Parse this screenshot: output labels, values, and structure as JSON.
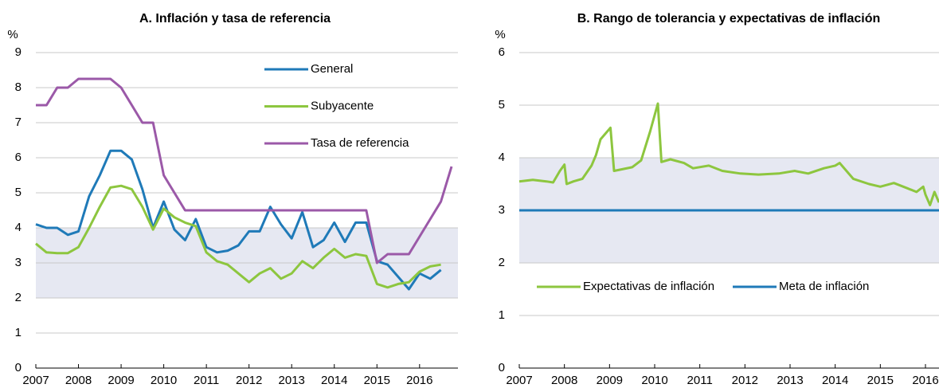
{
  "chart_data": [
    {
      "type": "line",
      "title": "A. Inflación y tasa de referencia",
      "y_unit": "%",
      "ylim": [
        0,
        9
      ],
      "yticks": [
        0,
        1,
        2,
        3,
        4,
        5,
        6,
        7,
        8,
        9
      ],
      "xlim": [
        2007,
        2016.9
      ],
      "xticks": [
        2007,
        2008,
        2009,
        2010,
        2011,
        2012,
        2013,
        2014,
        2015,
        2016
      ],
      "shaded_range": [
        2,
        4
      ],
      "grid": true,
      "legend": "upper right",
      "x": [
        2007,
        2007.25,
        2007.5,
        2007.75,
        2008,
        2008.25,
        2008.5,
        2008.75,
        2009,
        2009.25,
        2009.5,
        2009.75,
        2010,
        2010.25,
        2010.5,
        2010.75,
        2011,
        2011.25,
        2011.5,
        2011.75,
        2012,
        2012.25,
        2012.5,
        2012.75,
        2013,
        2013.25,
        2013.5,
        2013.75,
        2014,
        2014.25,
        2014.5,
        2014.75,
        2015,
        2015.25,
        2015.5,
        2015.75,
        2016,
        2016.25,
        2016.5,
        2016.75
      ],
      "series": [
        {
          "name": "General",
          "color": "#1f7ab8",
          "values": [
            4.1,
            4.0,
            4.0,
            3.8,
            3.9,
            4.9,
            5.5,
            6.2,
            6.2,
            5.95,
            5.1,
            4.0,
            4.75,
            3.95,
            3.65,
            4.25,
            3.45,
            3.3,
            3.35,
            3.5,
            3.9,
            3.9,
            4.6,
            4.1,
            3.7,
            4.45,
            3.45,
            3.65,
            4.15,
            3.6,
            4.15,
            4.15,
            3.05,
            2.95,
            2.6,
            2.25,
            2.7,
            2.55,
            2.8,
            null
          ]
        },
        {
          "name": "Subyacente",
          "color": "#8dc63f",
          "values": [
            3.55,
            3.3,
            3.28,
            3.28,
            3.45,
            4.0,
            4.6,
            5.15,
            5.2,
            5.1,
            4.6,
            3.95,
            4.55,
            4.3,
            4.15,
            4.05,
            3.3,
            3.05,
            2.95,
            2.7,
            2.45,
            2.7,
            2.85,
            2.55,
            2.7,
            3.05,
            2.85,
            3.15,
            3.4,
            3.15,
            3.25,
            3.2,
            2.4,
            2.3,
            2.4,
            2.45,
            2.75,
            2.9,
            2.95,
            null
          ]
        },
        {
          "name": "Tasa de referencia",
          "color": "#9b59a8",
          "values": [
            7.5,
            7.5,
            8.0,
            8.0,
            8.25,
            8.25,
            8.25,
            8.25,
            8.0,
            7.5,
            7.0,
            7.0,
            5.5,
            5.0,
            4.5,
            4.5,
            4.5,
            4.5,
            4.5,
            4.5,
            4.5,
            4.5,
            4.5,
            4.5,
            4.5,
            4.5,
            4.5,
            4.5,
            4.5,
            4.5,
            4.5,
            4.5,
            3.0,
            3.25,
            3.25,
            3.25,
            3.75,
            4.25,
            4.75,
            5.75
          ]
        }
      ]
    },
    {
      "type": "line",
      "title": "B. Rango de tolerancia y expectativas de inflación",
      "y_unit": "%",
      "ylim": [
        0,
        6
      ],
      "yticks": [
        0,
        1,
        2,
        3,
        4,
        5,
        6
      ],
      "xlim": [
        2007,
        2016.3
      ],
      "xticks": [
        2007,
        2008,
        2009,
        2010,
        2011,
        2012,
        2013,
        2014,
        2015,
        2016
      ],
      "shaded_range": [
        2,
        4
      ],
      "grid": true,
      "legend": "lower center",
      "series": [
        {
          "name": "Expectativas de inflación",
          "color": "#8dc63f",
          "x": [
            2007,
            2007.3,
            2007.6,
            2007.75,
            2007.9,
            2008.0,
            2008.05,
            2008.2,
            2008.4,
            2008.6,
            2008.7,
            2008.8,
            2008.95,
            2009.02,
            2009.1,
            2009.5,
            2009.7,
            2009.9,
            2010.07,
            2010.15,
            2010.35,
            2010.65,
            2010.85,
            2011.2,
            2011.5,
            2011.9,
            2012.3,
            2012.75,
            2013.1,
            2013.4,
            2013.75,
            2014.0,
            2014.1,
            2014.4,
            2014.75,
            2015.0,
            2015.3,
            2015.6,
            2015.8,
            2015.95,
            2016.0,
            2016.1,
            2016.2,
            2016.3
          ],
          "values": [
            3.55,
            3.58,
            3.55,
            3.53,
            3.75,
            3.87,
            3.5,
            3.55,
            3.6,
            3.85,
            4.05,
            4.35,
            4.5,
            4.57,
            3.75,
            3.82,
            3.95,
            4.5,
            5.03,
            3.92,
            3.97,
            3.9,
            3.8,
            3.85,
            3.75,
            3.7,
            3.68,
            3.7,
            3.75,
            3.7,
            3.8,
            3.85,
            3.9,
            3.6,
            3.5,
            3.45,
            3.52,
            3.42,
            3.35,
            3.45,
            3.3,
            3.1,
            3.35,
            3.15
          ]
        },
        {
          "name": "Meta de inflación",
          "color": "#1f7ab8",
          "x": [
            2007,
            2016.3
          ],
          "values": [
            3,
            3
          ]
        }
      ]
    }
  ]
}
